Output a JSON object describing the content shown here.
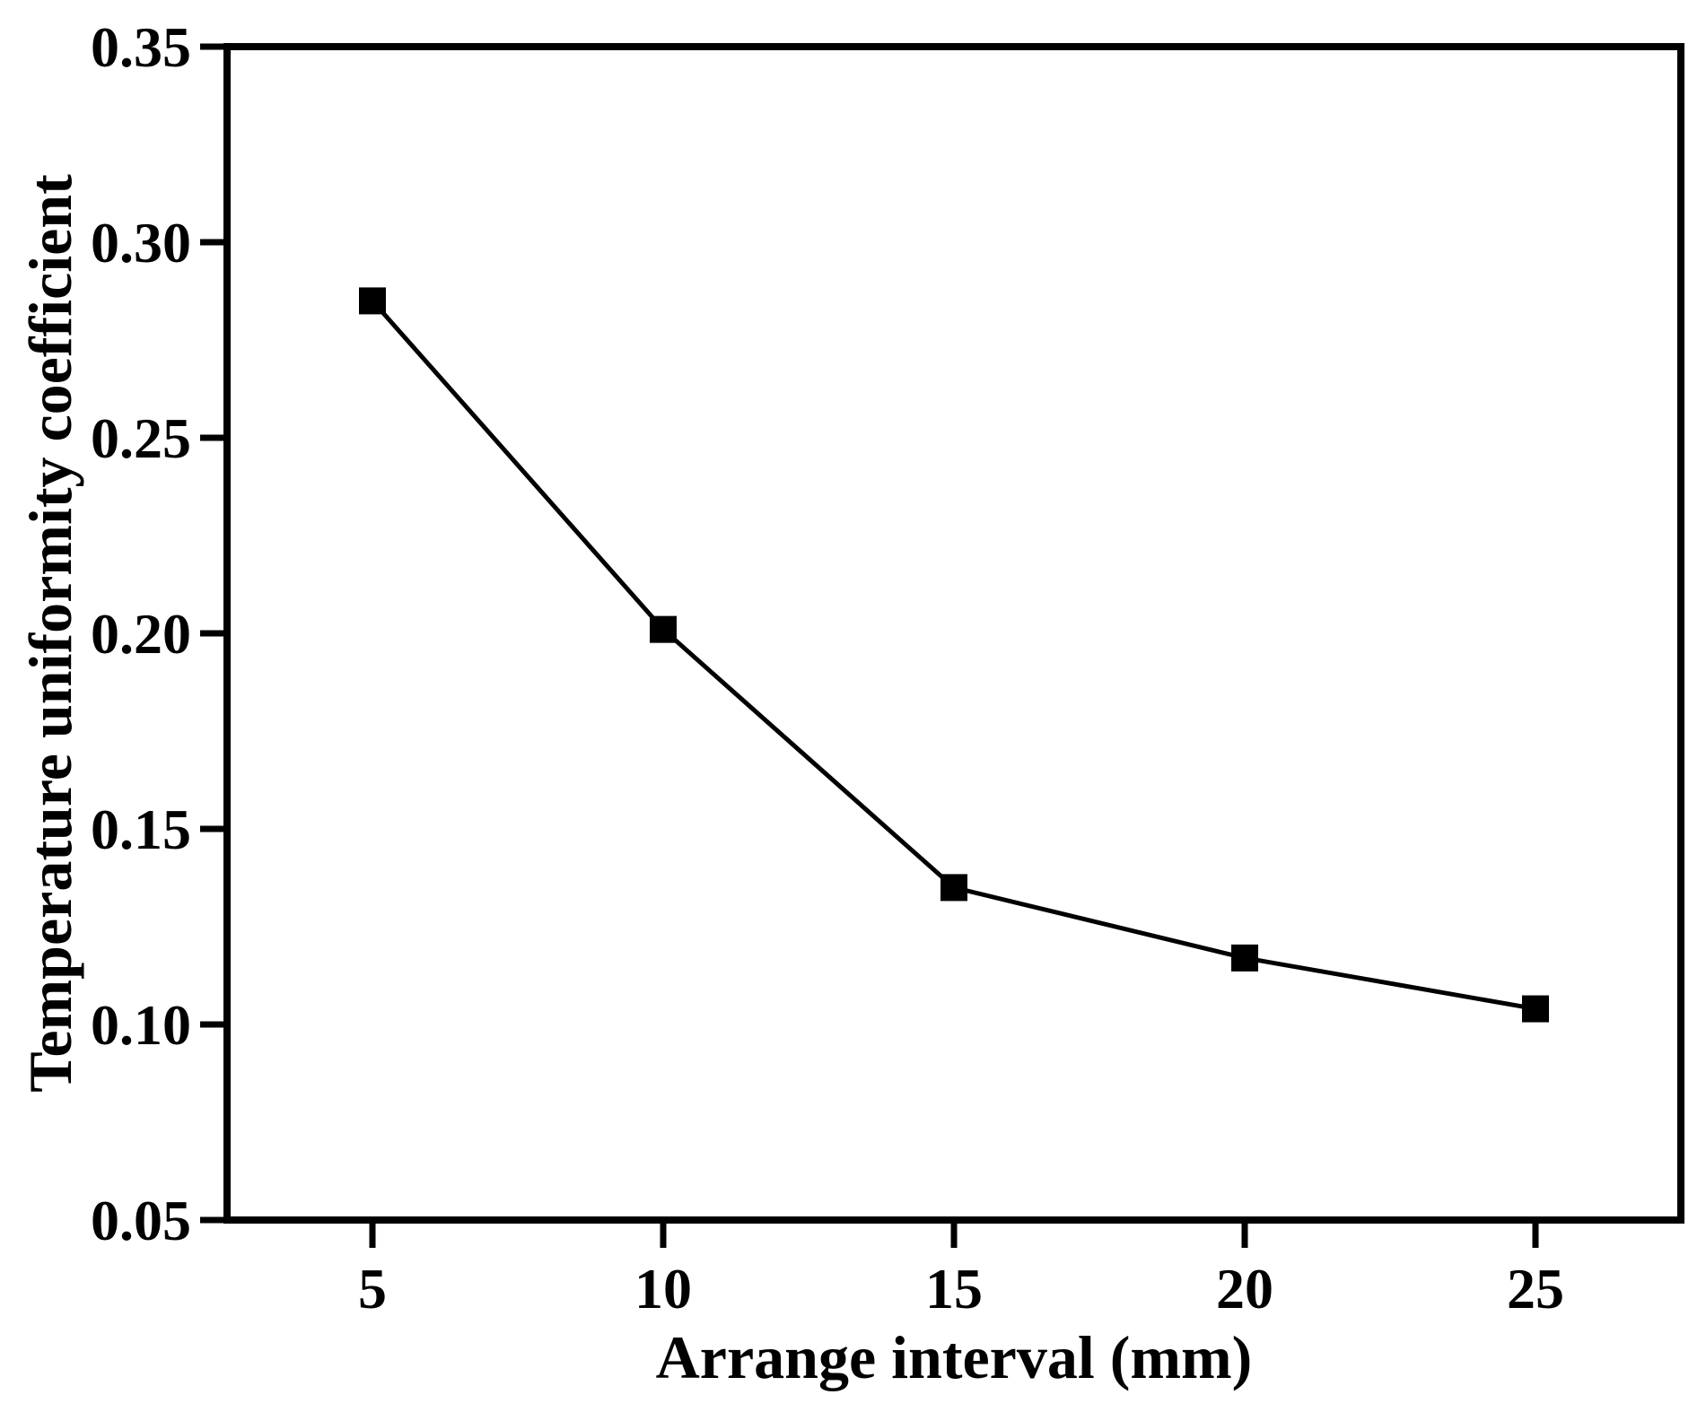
{
  "chart_data": {
    "type": "line",
    "xlabel": "Arrange interval (mm)",
    "ylabel": "Temperature uniformity coefficient",
    "x": [
      5,
      10,
      15,
      20,
      25
    ],
    "series": [
      {
        "name": "Temperature uniformity coefficient",
        "values": [
          0.285,
          0.201,
          0.135,
          0.117,
          0.104
        ]
      }
    ],
    "xlim": [
      2.5,
      27.5
    ],
    "ylim": [
      0.05,
      0.35
    ],
    "x_ticks": [
      5,
      10,
      15,
      20,
      25
    ],
    "x_tick_labels": [
      "5",
      "10",
      "15",
      "20",
      "25"
    ],
    "y_ticks": [
      0.35,
      0.3,
      0.25,
      0.2,
      0.15,
      0.1,
      0.05
    ],
    "y_tick_labels": [
      "0.35",
      "0.30",
      "0.25",
      "0.20",
      "0.15",
      "0.10",
      "0.05"
    ],
    "grid": false,
    "legend": "none",
    "marker": "square",
    "line_color": "#000000",
    "marker_color": "#000000",
    "axis_color": "#000000",
    "background_color": "#ffffff"
  }
}
